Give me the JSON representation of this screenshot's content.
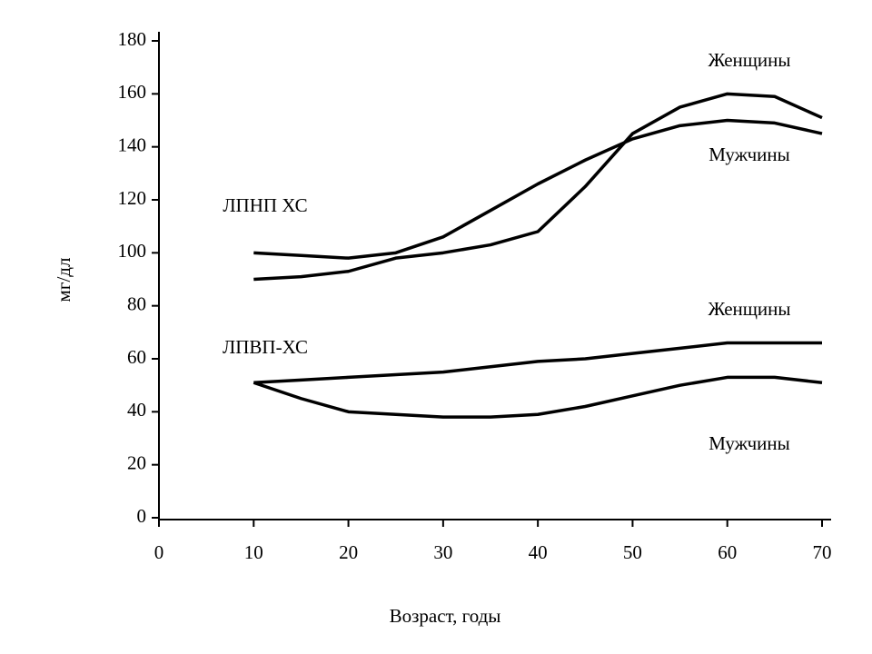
{
  "chart_data": {
    "type": "line",
    "x_label": "Возраст, годы",
    "y_label": "мг/дл",
    "x": [
      10,
      15,
      20,
      25,
      30,
      35,
      40,
      45,
      50,
      55,
      60,
      65,
      70
    ],
    "series": [
      {
        "name": "Женщины",
        "color": "#000000",
        "values": [
          90,
          91,
          93,
          98,
          100,
          103,
          108,
          125,
          145,
          155,
          160,
          159,
          151
        ]
      },
      {
        "name": "Мужчины",
        "color": "#000000",
        "values": [
          100,
          99,
          98,
          100,
          106,
          116,
          126,
          135,
          143,
          148,
          150,
          149,
          145
        ]
      },
      {
        "name": "Женщины",
        "color": "#000000",
        "values": [
          51,
          52,
          53,
          54,
          55,
          57,
          59,
          60,
          62,
          64,
          66,
          66,
          66
        ]
      },
      {
        "name": "Мужчины",
        "color": "#000000",
        "values": [
          51,
          45,
          40,
          39,
          38,
          38,
          39,
          42,
          46,
          50,
          53,
          53,
          51
        ]
      }
    ],
    "annotations": [
      "ЛПНП ХС",
      "ЛПВП-ХС"
    ],
    "xlim": [
      0,
      70
    ],
    "xticks": [
      0,
      10,
      20,
      30,
      40,
      50,
      60,
      70
    ],
    "ylim": [
      0,
      180
    ],
    "yticks": [
      0,
      20,
      40,
      60,
      80,
      100,
      120,
      140,
      160,
      180
    ],
    "grid": false
  }
}
